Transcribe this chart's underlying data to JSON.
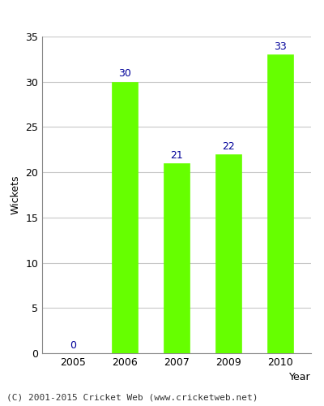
{
  "years": [
    "2005",
    "2006",
    "2007",
    "2009",
    "2010"
  ],
  "values": [
    0,
    30,
    21,
    22,
    33
  ],
  "bar_color": "#66ff00",
  "bar_edgecolor": "#66ff00",
  "label_color": "#000099",
  "xlabel": "Year",
  "ylabel": "Wickets",
  "ylim": [
    0,
    35
  ],
  "yticks": [
    0,
    5,
    10,
    15,
    20,
    25,
    30,
    35
  ],
  "grid_color": "#c8c8c8",
  "footnote": "(C) 2001-2015 Cricket Web (www.cricketweb.net)",
  "label_fontsize": 9,
  "axis_label_fontsize": 9,
  "tick_fontsize": 9,
  "footnote_fontsize": 8,
  "bar_width": 0.5
}
